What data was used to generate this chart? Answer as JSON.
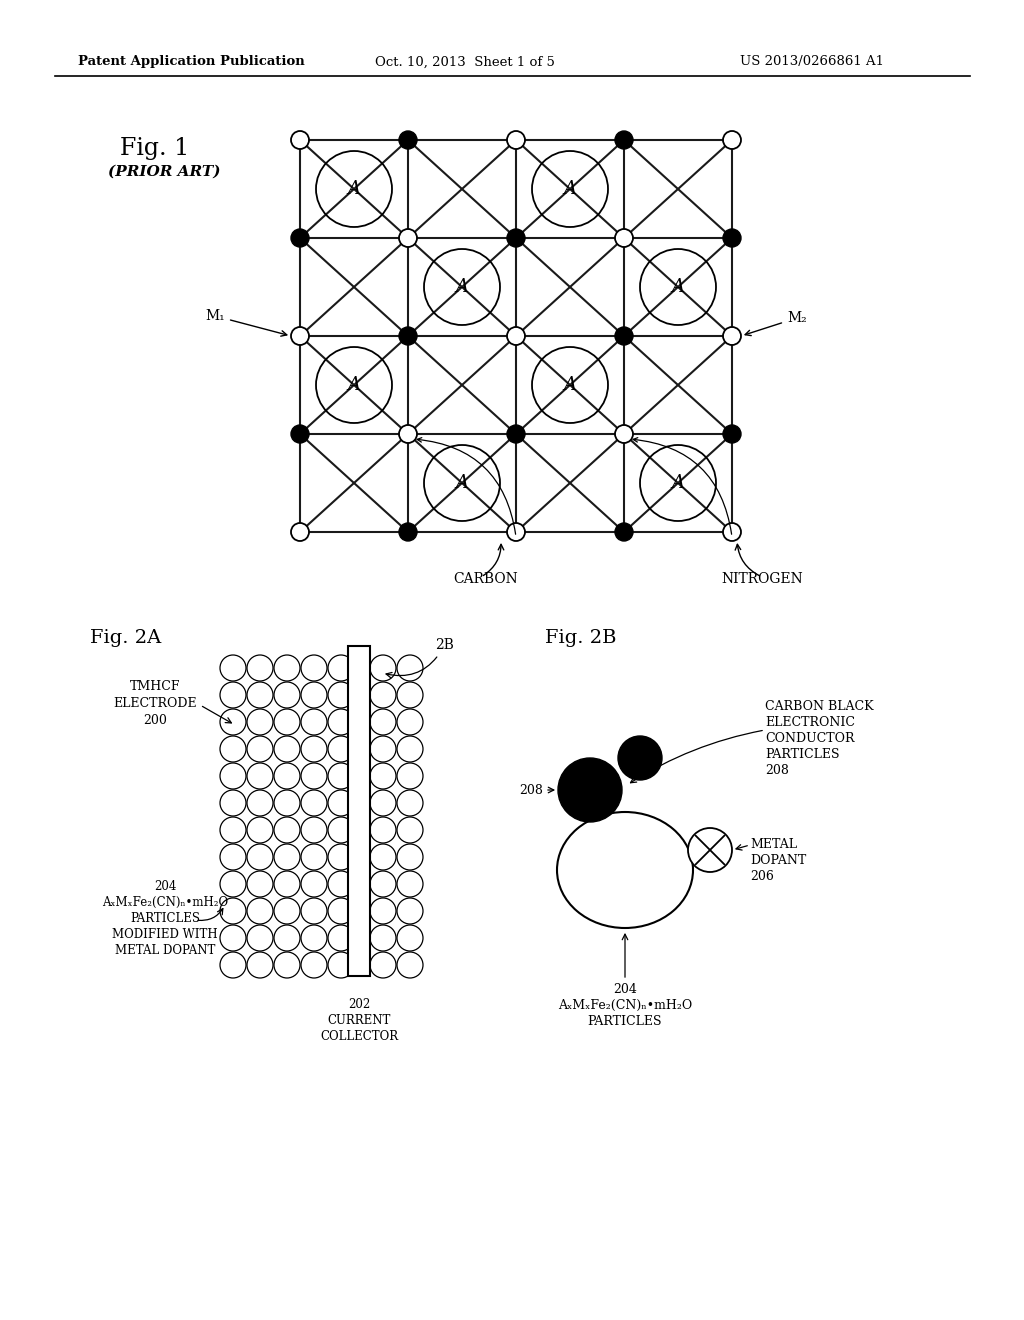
{
  "bg_color": "#ffffff",
  "header_text": "Patent Application Publication",
  "header_date": "Oct. 10, 2013  Sheet 1 of 5",
  "header_patent": "US 2013/0266861 A1"
}
